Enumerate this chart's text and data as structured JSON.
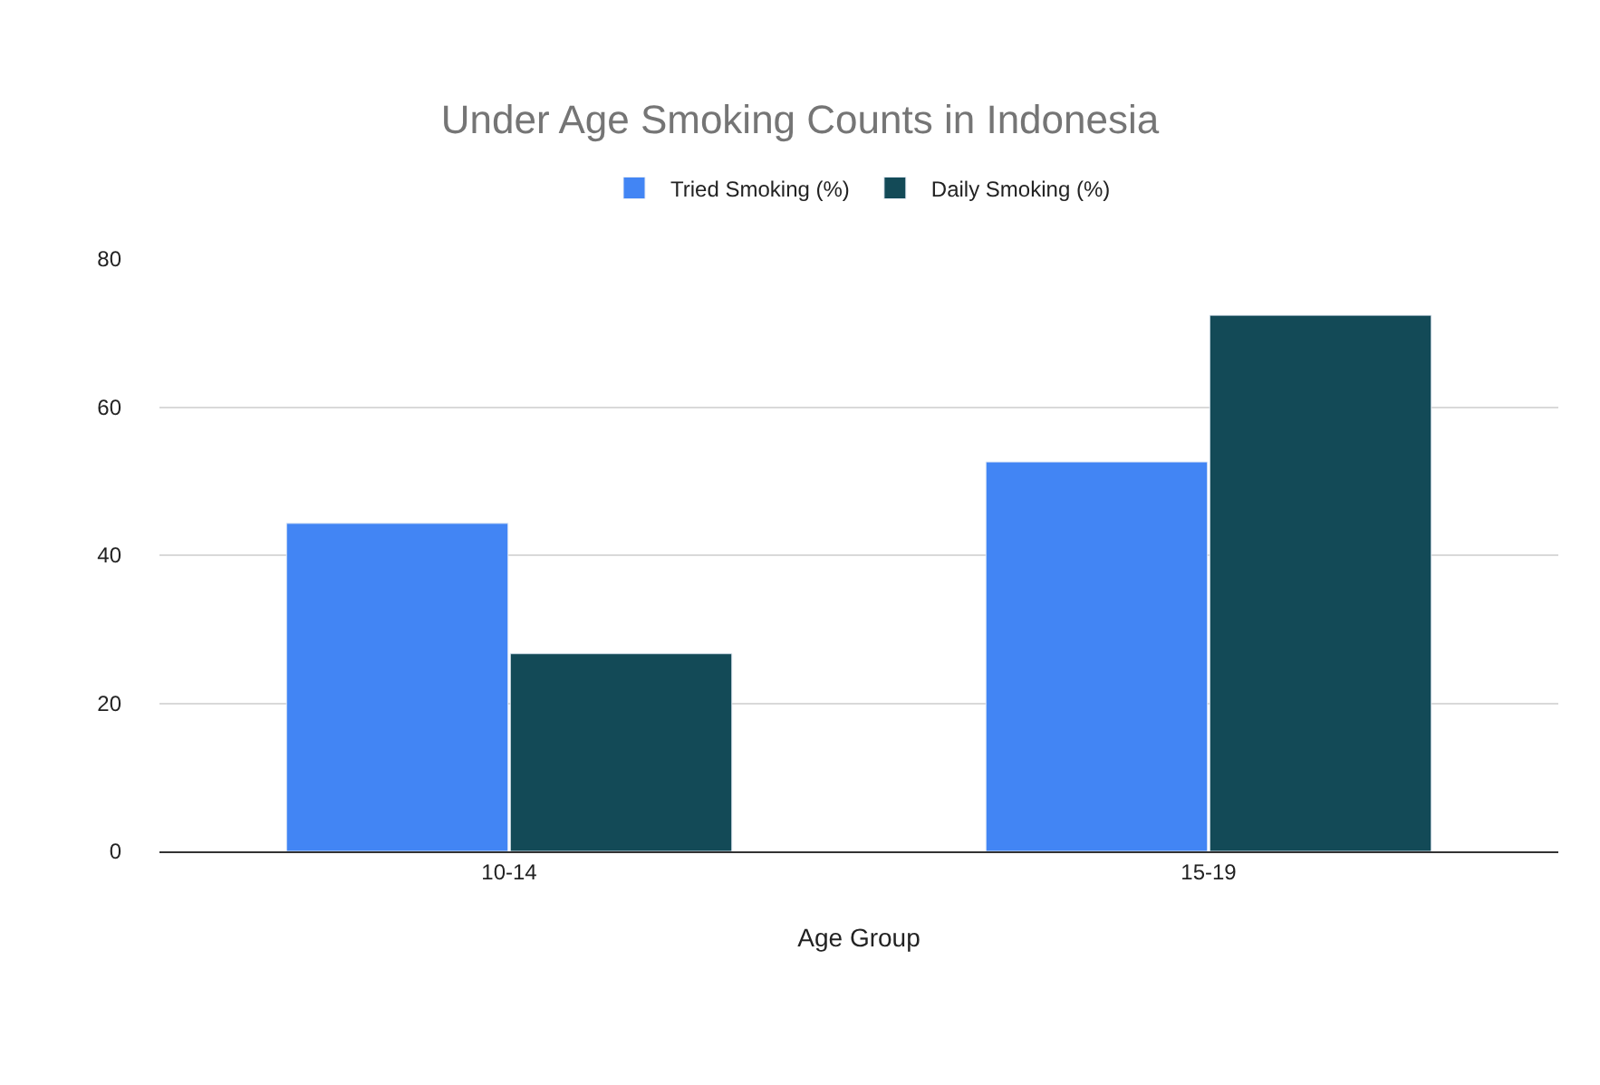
{
  "chart_data": {
    "type": "bar",
    "title": "Under Age Smoking Counts in Indonesia",
    "xlabel": "Age Group",
    "categories": [
      "10-14",
      "15-19"
    ],
    "series": [
      {
        "name": "Tried Smoking (%)",
        "color": "#4285f4",
        "values": [
          44.3,
          52.6
        ]
      },
      {
        "name": "Daily Smoking (%)",
        "color": "#134a57",
        "values": [
          26.7,
          72.4
        ]
      }
    ],
    "ylim": [
      0,
      80
    ],
    "yticks": [
      0,
      20,
      40,
      60,
      80
    ],
    "grid": "y",
    "legend": "top"
  }
}
